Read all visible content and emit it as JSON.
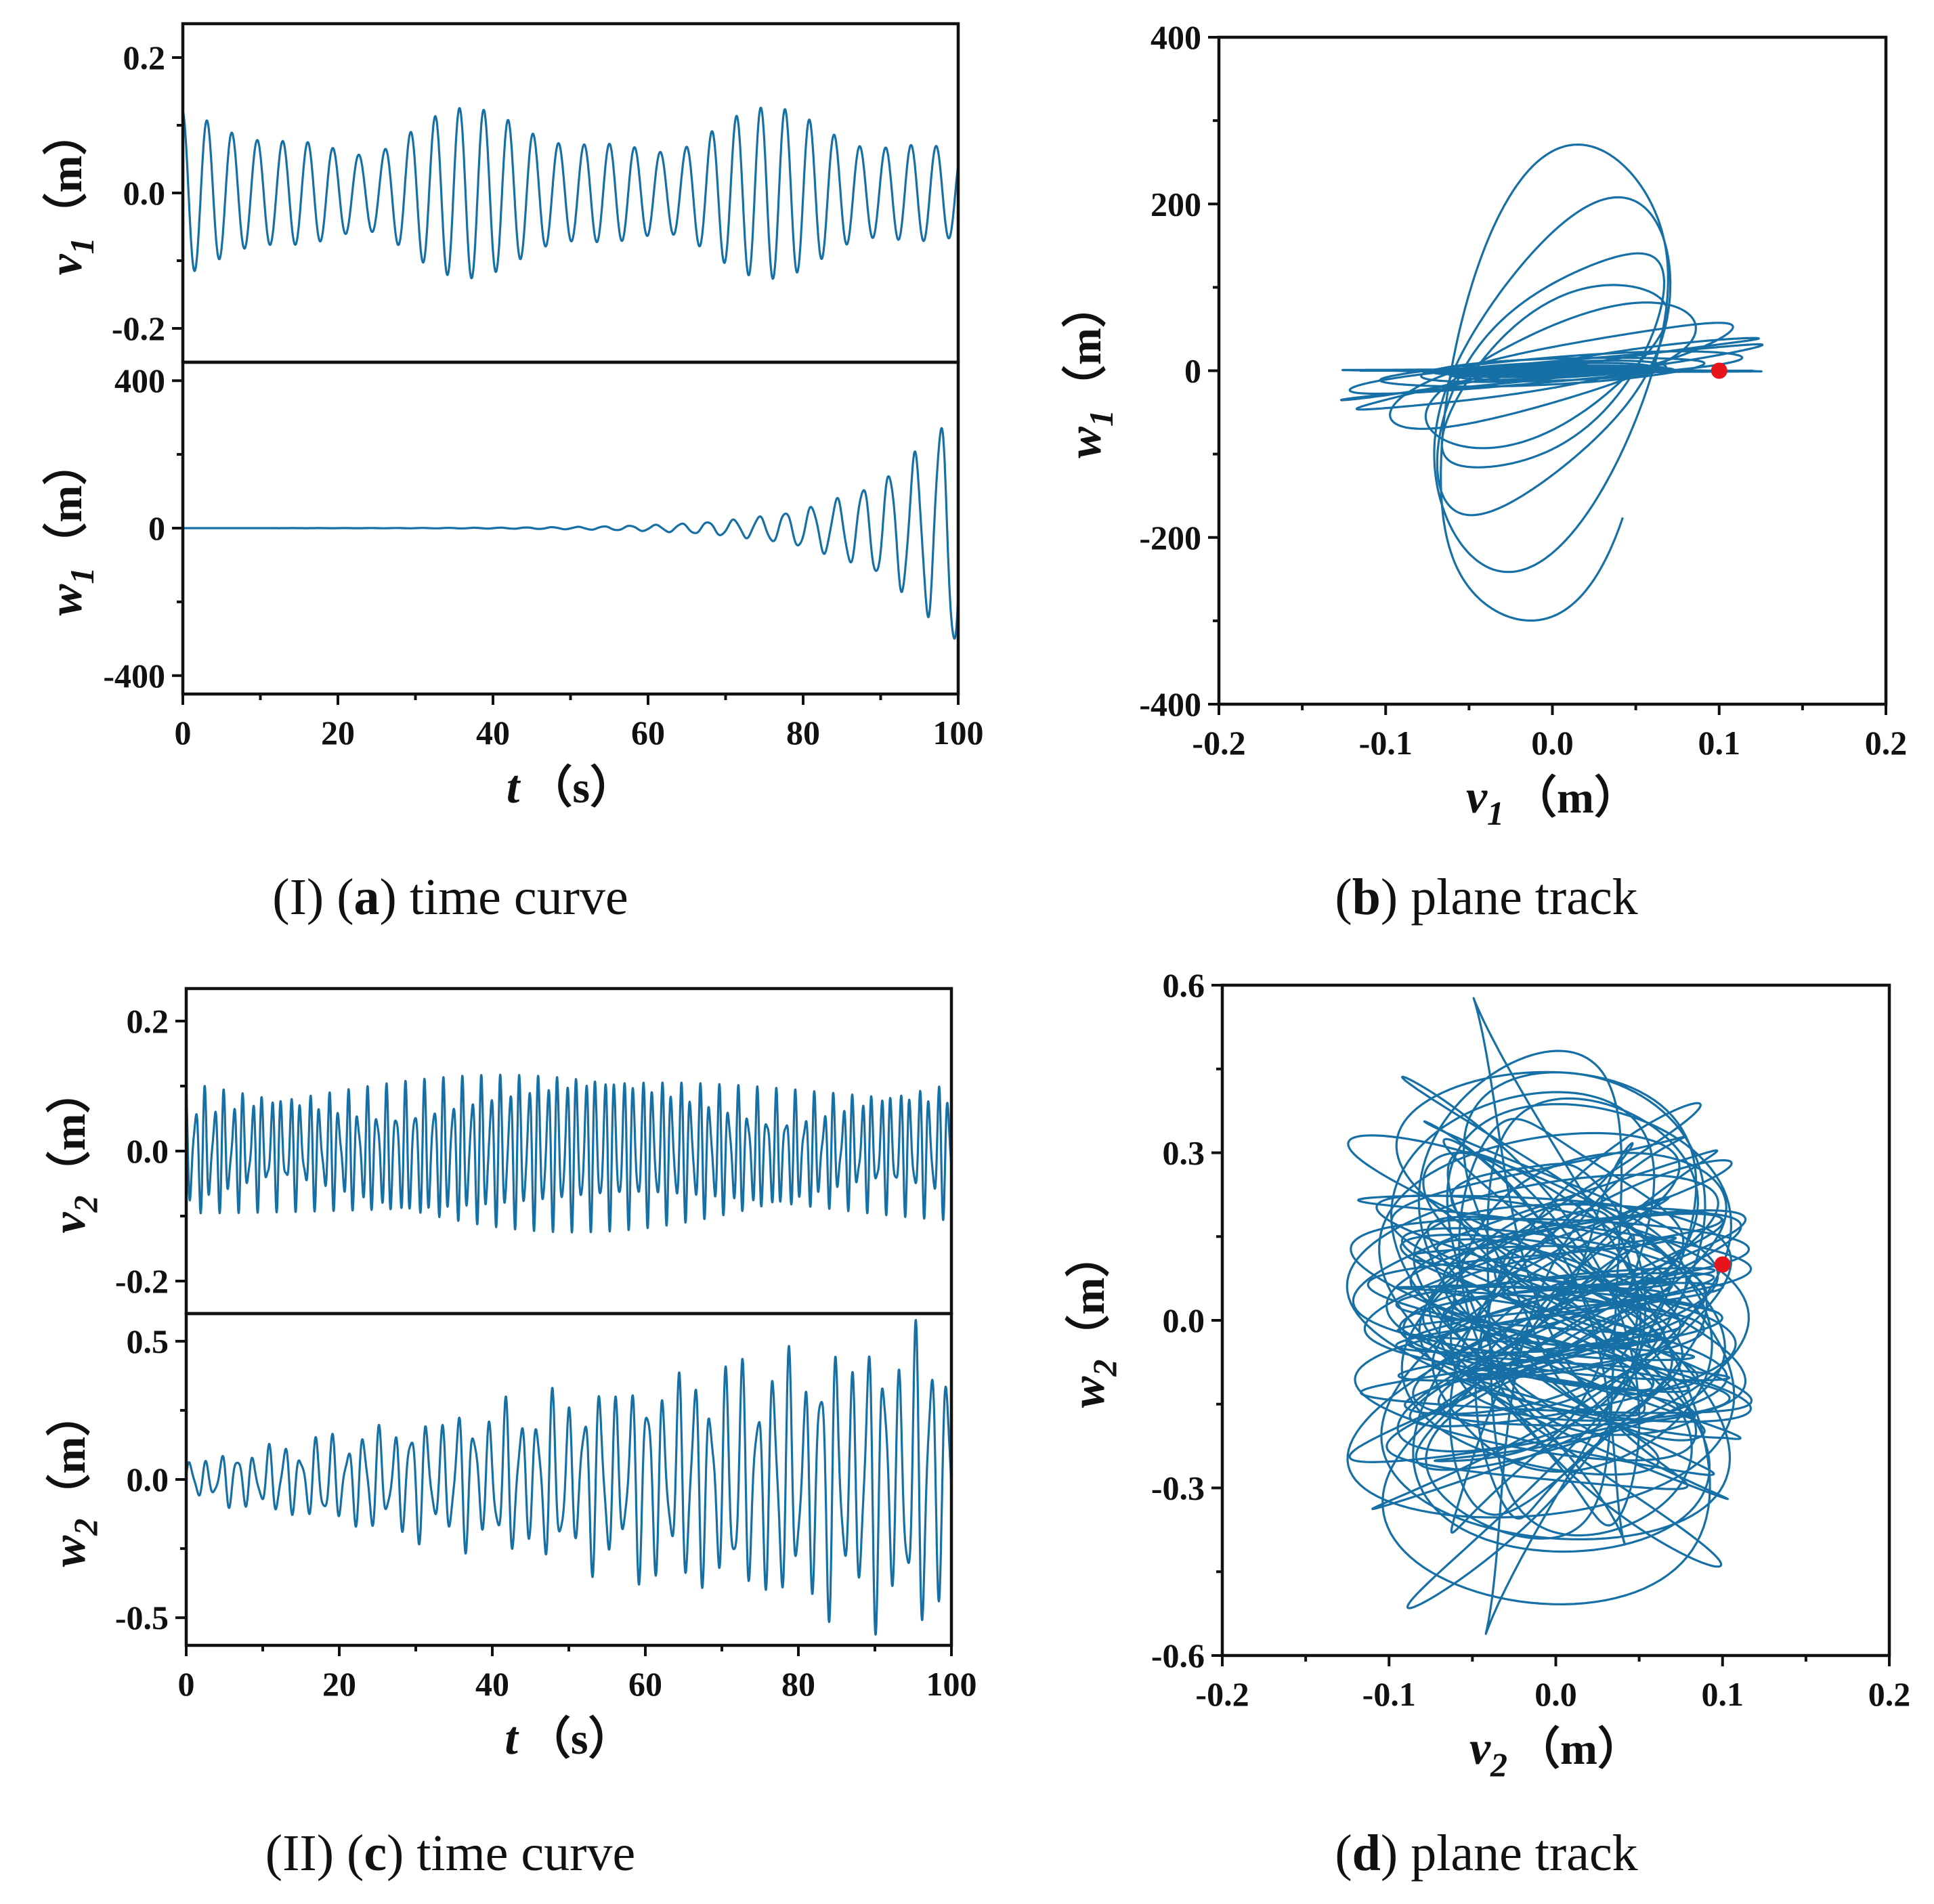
{
  "figure": {
    "captions": {
      "a": {
        "prefix": "(I) (",
        "letter": "a",
        "suffix": ") time curve"
      },
      "b": {
        "prefix": "(",
        "letter": "b",
        "suffix": ") plane track"
      },
      "c": {
        "prefix": "(II) (",
        "letter": "c",
        "suffix": ") time curve"
      },
      "d": {
        "prefix": "(",
        "letter": "d",
        "suffix": ") plane track"
      }
    }
  },
  "colors": {
    "series": "#1670a5",
    "marker": "#e8141b",
    "axis": "#111111"
  },
  "chart_data": [
    {
      "id": "a_top",
      "type": "line",
      "panel": "a",
      "ylabel": {
        "symbol": "v",
        "sub": "1",
        "unit": "（m）"
      },
      "xlim": [
        0,
        100
      ],
      "ylim": [
        -0.25,
        0.25
      ],
      "yticks": [
        -0.2,
        0.0,
        0.2
      ],
      "yticklabels": [
        "-0.2",
        "0.0",
        "0.2"
      ],
      "series": [
        {
          "name": "v1",
          "kind": "beat",
          "omega": 1.94,
          "components": [
            [
              0.085,
              0.0,
              0.0
            ],
            [
              0.028,
              0.165,
              0.0
            ],
            [
              0.014,
              0.32,
              1.0
            ]
          ]
        }
      ]
    },
    {
      "id": "a_bottom",
      "type": "line",
      "panel": "a",
      "ylabel": {
        "symbol": "w",
        "sub": "1",
        "unit": "（m）"
      },
      "xlabel": {
        "symbol": "t",
        "unit": "（s）"
      },
      "xlim": [
        0,
        100
      ],
      "ylim": [
        -450,
        450
      ],
      "xticks": [
        0,
        20,
        40,
        60,
        80,
        100
      ],
      "xticklabels": [
        "0",
        "20",
        "40",
        "60",
        "80",
        "100"
      ],
      "yticks": [
        -400,
        0,
        400
      ],
      "yticklabels": [
        "-400",
        "0",
        "400"
      ],
      "series": [
        {
          "name": "w1",
          "kind": "growth",
          "omega": 1.88,
          "amplitude": 330,
          "growth": 0.093,
          "ref_t": 100,
          "jitter": 0.06
        }
      ]
    },
    {
      "id": "b",
      "type": "scatter",
      "panel": "b",
      "xlabel": {
        "symbol": "v",
        "sub": "1",
        "unit": "（m）"
      },
      "ylabel": {
        "symbol": "w",
        "sub": "1",
        "unit": "（m）"
      },
      "xlim": [
        -0.2,
        0.2
      ],
      "ylim": [
        -400,
        400
      ],
      "xticks": [
        -0.2,
        -0.1,
        0.0,
        0.1,
        0.2
      ],
      "xticklabels": [
        "-0.2",
        "-0.1",
        "0.0",
        "0.1",
        "0.2"
      ],
      "yticks": [
        -400,
        -200,
        0,
        200,
        400
      ],
      "yticklabels": [
        "-400",
        "-200",
        "0",
        "200",
        "400"
      ],
      "phase_of": [
        "a_top",
        "a_bottom"
      ],
      "marker": {
        "x": 0.1,
        "y": 0
      }
    },
    {
      "id": "c_top",
      "type": "line",
      "panel": "c",
      "ylabel": {
        "symbol": "v",
        "sub": "2",
        "unit": "（m）"
      },
      "xlim": [
        0,
        100
      ],
      "ylim": [
        -0.25,
        0.25
      ],
      "yticks": [
        -0.2,
        0.0,
        0.2
      ],
      "yticklabels": [
        "-0.2",
        "0.0",
        "0.2"
      ],
      "series": [
        {
          "name": "v2",
          "kind": "beat",
          "omega": 5.05,
          "components": [
            [
              0.08,
              0.0,
              0.0
            ],
            [
              0.03,
              2.6,
              0.7
            ],
            [
              0.016,
              0.09,
              1.9
            ]
          ]
        }
      ]
    },
    {
      "id": "c_bottom",
      "type": "line",
      "panel": "c",
      "ylabel": {
        "symbol": "w",
        "sub": "2",
        "unit": "（m）"
      },
      "xlabel": {
        "symbol": "t",
        "unit": "（s）"
      },
      "xlim": [
        0,
        100
      ],
      "ylim": [
        -0.6,
        0.6
      ],
      "xticks": [
        0,
        20,
        40,
        60,
        80,
        100
      ],
      "xticklabels": [
        "0",
        "20",
        "40",
        "60",
        "80",
        "100"
      ],
      "yticks": [
        -0.5,
        0.0,
        0.5
      ],
      "yticklabels": [
        "-0.5",
        "0.0",
        "0.5"
      ],
      "series": [
        {
          "name": "w2",
          "kind": "growth_beat",
          "omega": 3.05,
          "base": 0.06,
          "slope": 0.0042,
          "beat_omega": 1.05,
          "beat_depth": 0.35,
          "harmonic": 0.3
        }
      ]
    },
    {
      "id": "d",
      "type": "scatter",
      "panel": "d",
      "xlabel": {
        "symbol": "v",
        "sub": "2",
        "unit": "（m）"
      },
      "ylabel": {
        "symbol": "w",
        "sub": "2",
        "unit": "（m）"
      },
      "xlim": [
        -0.2,
        0.2
      ],
      "ylim": [
        -0.6,
        0.6
      ],
      "xticks": [
        -0.2,
        -0.1,
        0.0,
        0.1,
        0.2
      ],
      "xticklabels": [
        "-0.2",
        "-0.1",
        "0.0",
        "0.1",
        "0.2"
      ],
      "yticks": [
        -0.6,
        -0.3,
        0.0,
        0.3,
        0.6
      ],
      "yticklabels": [
        "-0.6",
        "-0.3",
        "0.0",
        "0.3",
        "0.6"
      ],
      "phase_of": [
        "c_top",
        "c_bottom"
      ],
      "marker": {
        "x": 0.1,
        "y": 0.1
      }
    }
  ]
}
